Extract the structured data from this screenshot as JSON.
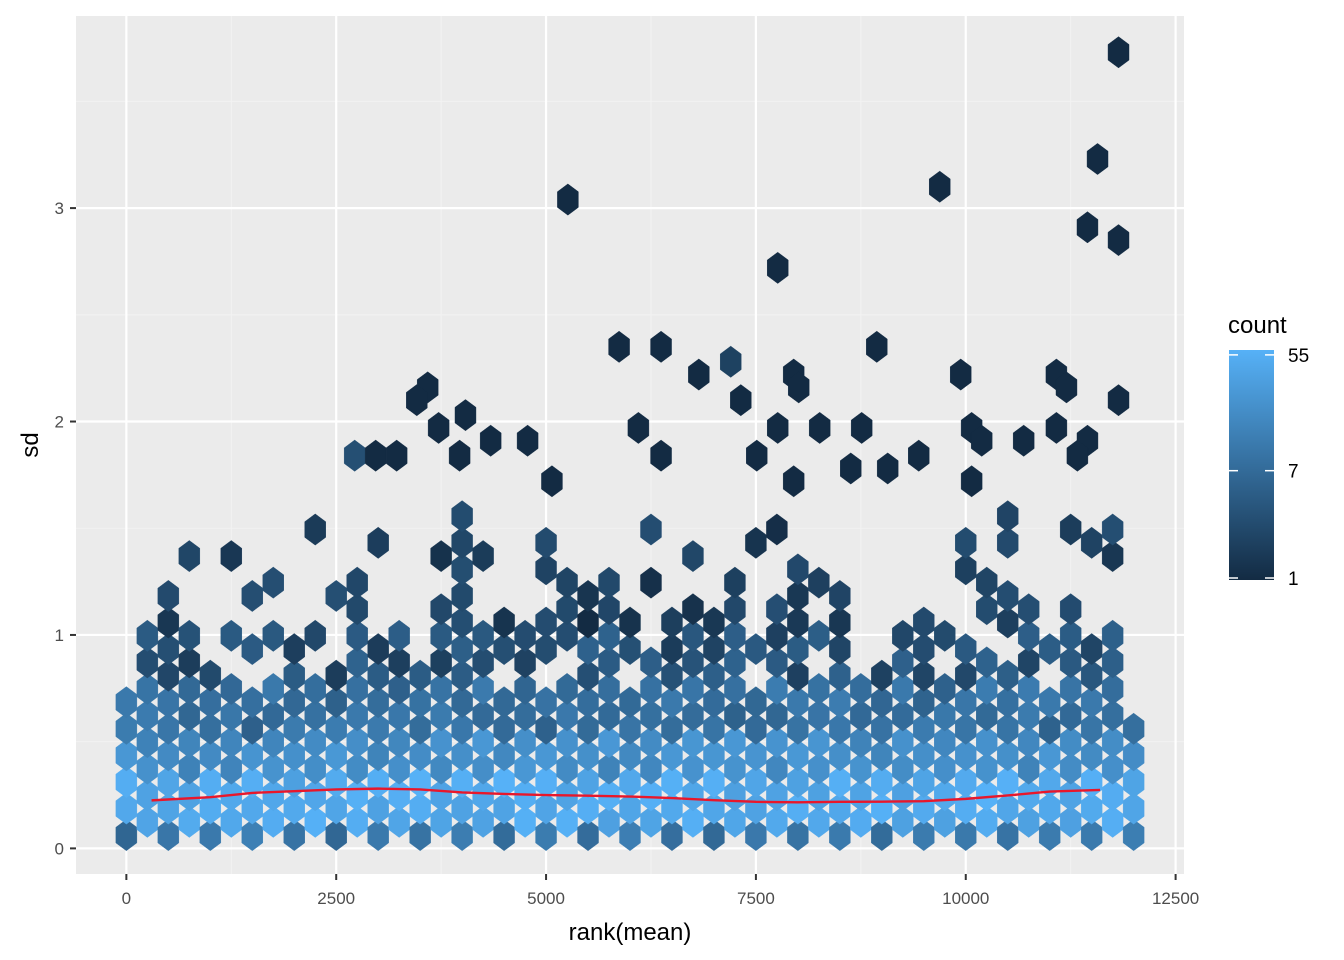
{
  "colors": {
    "panel_bg": "#EBEBEB",
    "grid_major": "#FFFFFF",
    "grid_minor": "#F2F2F2",
    "low": "#132B43",
    "high": "#56B1F7",
    "trend": "#E8172B"
  },
  "chart_data": {
    "type": "heatmap",
    "geom": "hexbin",
    "xlabel": "rank(mean)",
    "ylabel": "sd",
    "xlim": [
      -600,
      12600
    ],
    "ylim": [
      -0.12,
      3.9
    ],
    "x_ticks": [
      0,
      2500,
      5000,
      7500,
      10000,
      12500
    ],
    "x_tick_labels": [
      "0",
      "2500",
      "5000",
      "7500",
      "10000",
      "12500"
    ],
    "y_ticks": [
      0,
      1,
      2,
      3
    ],
    "y_tick_labels": [
      "0",
      "1",
      "2",
      "3"
    ],
    "grid": true,
    "legend": {
      "title": "count",
      "scale": "log",
      "breaks": [
        1,
        7,
        55
      ],
      "break_labels": [
        "1",
        "7",
        "55"
      ],
      "position": "right"
    },
    "hexbin": {
      "binwidth_x": 250,
      "binwidth_y": 0.1245
    },
    "outliers": [
      {
        "x": 11820,
        "y": 3.73,
        "count": 1
      },
      {
        "x": 11570,
        "y": 3.23,
        "count": 1
      },
      {
        "x": 9690,
        "y": 3.1,
        "count": 1
      },
      {
        "x": 5260,
        "y": 3.04,
        "count": 1
      },
      {
        "x": 11450,
        "y": 2.91,
        "count": 1
      },
      {
        "x": 11820,
        "y": 2.85,
        "count": 1
      },
      {
        "x": 7760,
        "y": 2.72,
        "count": 1
      },
      {
        "x": 5870,
        "y": 2.35,
        "count": 1
      },
      {
        "x": 6370,
        "y": 2.35,
        "count": 1
      },
      {
        "x": 8940,
        "y": 2.35,
        "count": 1
      },
      {
        "x": 7200,
        "y": 2.28,
        "count": 2
      },
      {
        "x": 6820,
        "y": 2.22,
        "count": 1
      },
      {
        "x": 7950,
        "y": 2.22,
        "count": 1
      },
      {
        "x": 9940,
        "y": 2.22,
        "count": 1
      },
      {
        "x": 11080,
        "y": 2.22,
        "count": 1
      },
      {
        "x": 8010,
        "y": 2.16,
        "count": 1
      },
      {
        "x": 11200,
        "y": 2.16,
        "count": 1
      },
      {
        "x": 3590,
        "y": 2.16,
        "count": 1
      },
      {
        "x": 3460,
        "y": 2.1,
        "count": 1
      },
      {
        "x": 7320,
        "y": 2.1,
        "count": 1
      },
      {
        "x": 11820,
        "y": 2.1,
        "count": 1
      },
      {
        "x": 4040,
        "y": 2.03,
        "count": 1
      },
      {
        "x": 3720,
        "y": 1.97,
        "count": 1
      },
      {
        "x": 6100,
        "y": 1.97,
        "count": 1
      },
      {
        "x": 7760,
        "y": 1.97,
        "count": 1
      },
      {
        "x": 8260,
        "y": 1.97,
        "count": 1
      },
      {
        "x": 8760,
        "y": 1.97,
        "count": 1
      },
      {
        "x": 10070,
        "y": 1.97,
        "count": 1
      },
      {
        "x": 11080,
        "y": 1.97,
        "count": 1
      },
      {
        "x": 4340,
        "y": 1.91,
        "count": 1
      },
      {
        "x": 4780,
        "y": 1.91,
        "count": 1
      },
      {
        "x": 10190,
        "y": 1.91,
        "count": 1
      },
      {
        "x": 10690,
        "y": 1.91,
        "count": 1
      },
      {
        "x": 11450,
        "y": 1.91,
        "count": 1
      },
      {
        "x": 2720,
        "y": 1.84,
        "count": 3
      },
      {
        "x": 2970,
        "y": 1.84,
        "count": 1
      },
      {
        "x": 3220,
        "y": 1.84,
        "count": 1
      },
      {
        "x": 3970,
        "y": 1.84,
        "count": 1
      },
      {
        "x": 6370,
        "y": 1.84,
        "count": 1
      },
      {
        "x": 7510,
        "y": 1.84,
        "count": 1
      },
      {
        "x": 9440,
        "y": 1.84,
        "count": 1
      },
      {
        "x": 11330,
        "y": 1.84,
        "count": 1
      },
      {
        "x": 8630,
        "y": 1.78,
        "count": 1
      },
      {
        "x": 9070,
        "y": 1.78,
        "count": 1
      },
      {
        "x": 5070,
        "y": 1.72,
        "count": 1
      },
      {
        "x": 7950,
        "y": 1.72,
        "count": 1
      },
      {
        "x": 10070,
        "y": 1.72,
        "count": 1
      }
    ],
    "trend_line": {
      "x": [
        300,
        1000,
        1500,
        2000,
        2500,
        3000,
        3500,
        4000,
        4500,
        5000,
        5500,
        6000,
        6500,
        7000,
        7500,
        8000,
        8500,
        9000,
        9500,
        10000,
        10500,
        11000,
        11600
      ],
      "y": [
        0.225,
        0.24,
        0.26,
        0.268,
        0.276,
        0.28,
        0.276,
        0.262,
        0.255,
        0.25,
        0.247,
        0.243,
        0.236,
        0.226,
        0.218,
        0.216,
        0.218,
        0.219,
        0.221,
        0.232,
        0.248,
        0.266,
        0.274
      ]
    }
  }
}
